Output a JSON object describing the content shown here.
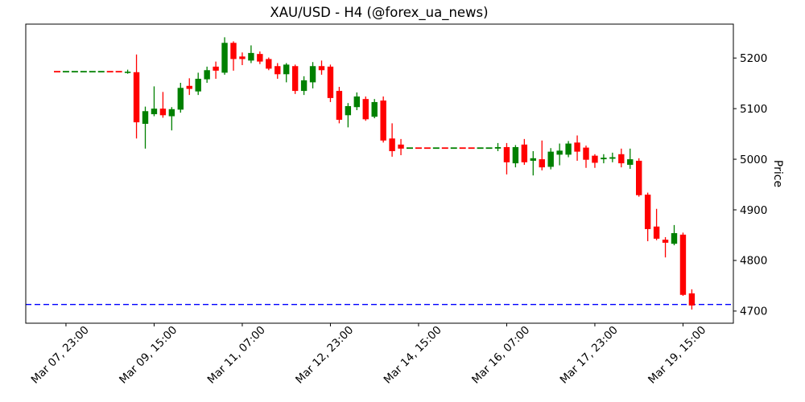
{
  "title": "XAU/USD - H4 (@forex_ua_news)",
  "chart_data": {
    "type": "candlestick",
    "title": "XAU/USD - H4 (@forex_ua_news)",
    "xlabel": "",
    "ylabel": "Price",
    "grid": false,
    "legend": null,
    "ylim": [
      4676,
      5267
    ],
    "y_ticks": [
      4700,
      4800,
      4900,
      5000,
      5100,
      5200
    ],
    "x_tick_labels": [
      "Mar 07, 23:00",
      "Mar 09, 15:00",
      "Mar 11, 07:00",
      "Mar 12, 23:00",
      "Mar 14, 15:00",
      "Mar 16, 07:00",
      "Mar 17, 23:00",
      "Mar 19, 15:00"
    ],
    "x_tick_bar_indices": [
      1,
      11,
      21,
      31,
      41,
      51,
      61,
      71
    ],
    "up_color": "#008000",
    "down_color": "#ff0000",
    "support_line": {
      "price": 4713,
      "color": "#0000ff",
      "style": "dashed"
    },
    "weekend_flat_levels": [
      5173,
      5022
    ],
    "candles_format": [
      "open",
      "high",
      "low",
      "close",
      "color"
    ],
    "candles": [
      [
        5173,
        5173,
        5173,
        5173,
        "r"
      ],
      [
        5173,
        5173,
        5173,
        5173,
        "g"
      ],
      [
        5173,
        5173,
        5173,
        5173,
        "g"
      ],
      [
        5173,
        5173,
        5173,
        5173,
        "g"
      ],
      [
        5173,
        5173,
        5173,
        5173,
        "g"
      ],
      [
        5173,
        5173,
        5173,
        5173,
        "g"
      ],
      [
        5173,
        5173,
        5173,
        5173,
        "r"
      ],
      [
        5173,
        5173,
        5173,
        5173,
        "r"
      ],
      [
        5173,
        5177,
        5169,
        5173,
        "g"
      ],
      [
        5172,
        5207,
        5041,
        5073,
        "r"
      ],
      [
        5070,
        5104,
        5021,
        5095,
        "g"
      ],
      [
        5089,
        5144,
        5085,
        5100,
        "g"
      ],
      [
        5100,
        5133,
        5082,
        5087,
        "r"
      ],
      [
        5085,
        5103,
        5057,
        5099,
        "g"
      ],
      [
        5098,
        5151,
        5092,
        5141,
        "g"
      ],
      [
        5145,
        5160,
        5127,
        5139,
        "r"
      ],
      [
        5134,
        5171,
        5127,
        5159,
        "g"
      ],
      [
        5158,
        5183,
        5151,
        5176,
        "g"
      ],
      [
        5183,
        5193,
        5159,
        5175,
        "r"
      ],
      [
        5171,
        5241,
        5167,
        5230,
        "g"
      ],
      [
        5230,
        5233,
        5175,
        5198,
        "r"
      ],
      [
        5203,
        5211,
        5186,
        5198,
        "r"
      ],
      [
        5195,
        5225,
        5190,
        5210,
        "g"
      ],
      [
        5208,
        5213,
        5188,
        5193,
        "r"
      ],
      [
        5198,
        5201,
        5176,
        5179,
        "r"
      ],
      [
        5184,
        5190,
        5159,
        5168,
        "r"
      ],
      [
        5168,
        5190,
        5152,
        5187,
        "g"
      ],
      [
        5184,
        5187,
        5129,
        5135,
        "r"
      ],
      [
        5135,
        5164,
        5127,
        5156,
        "g"
      ],
      [
        5152,
        5192,
        5140,
        5184,
        "g"
      ],
      [
        5184,
        5195,
        5167,
        5176,
        "r"
      ],
      [
        5183,
        5187,
        5113,
        5121,
        "r"
      ],
      [
        5135,
        5143,
        5071,
        5078,
        "r"
      ],
      [
        5087,
        5111,
        5063,
        5105,
        "g"
      ],
      [
        5103,
        5132,
        5097,
        5124,
        "g"
      ],
      [
        5119,
        5124,
        5076,
        5079,
        "r"
      ],
      [
        5084,
        5119,
        5081,
        5113,
        "g"
      ],
      [
        5116,
        5124,
        5033,
        5037,
        "r"
      ],
      [
        5041,
        5071,
        5005,
        5016,
        "r"
      ],
      [
        5029,
        5040,
        5008,
        5021,
        "r"
      ],
      [
        5022,
        5022,
        5022,
        5022,
        "g"
      ],
      [
        5022,
        5022,
        5022,
        5022,
        "r"
      ],
      [
        5022,
        5022,
        5022,
        5022,
        "r"
      ],
      [
        5022,
        5022,
        5022,
        5022,
        "g"
      ],
      [
        5022,
        5022,
        5022,
        5022,
        "r"
      ],
      [
        5022,
        5022,
        5022,
        5022,
        "g"
      ],
      [
        5022,
        5022,
        5022,
        5022,
        "r"
      ],
      [
        5022,
        5022,
        5022,
        5022,
        "r"
      ],
      [
        5022,
        5022,
        5022,
        5022,
        "g"
      ],
      [
        5022,
        5022,
        5022,
        5022,
        "g"
      ],
      [
        5021,
        5032,
        5016,
        5024,
        "g"
      ],
      [
        5024,
        5032,
        4970,
        4994,
        "r"
      ],
      [
        4992,
        5028,
        4984,
        5024,
        "g"
      ],
      [
        5029,
        5040,
        4989,
        4994,
        "r"
      ],
      [
        4997,
        5016,
        4968,
        5002,
        "g"
      ],
      [
        5000,
        5037,
        4978,
        4984,
        "r"
      ],
      [
        4985,
        5022,
        4980,
        5015,
        "g"
      ],
      [
        5009,
        5031,
        4988,
        5017,
        "g"
      ],
      [
        5009,
        5036,
        5004,
        5031,
        "g"
      ],
      [
        5033,
        5047,
        4997,
        5015,
        "r"
      ],
      [
        5023,
        5027,
        4983,
        4999,
        "r"
      ],
      [
        5007,
        5010,
        4983,
        4993,
        "r"
      ],
      [
        5000,
        5010,
        4992,
        5003,
        "g"
      ],
      [
        5001,
        5013,
        4994,
        5004,
        "g"
      ],
      [
        5010,
        5021,
        4984,
        4992,
        "r"
      ],
      [
        4989,
        5021,
        4981,
        5000,
        "g"
      ],
      [
        4997,
        5002,
        4926,
        4929,
        "r"
      ],
      [
        4930,
        4934,
        4838,
        4862,
        "r"
      ],
      [
        4867,
        4902,
        4840,
        4843,
        "r"
      ],
      [
        4841,
        4846,
        4806,
        4835,
        "r"
      ],
      [
        4833,
        4870,
        4830,
        4854,
        "g"
      ],
      [
        4851,
        4855,
        4730,
        4732,
        "r"
      ],
      [
        4735,
        4743,
        4703,
        4711,
        "r"
      ]
    ]
  }
}
